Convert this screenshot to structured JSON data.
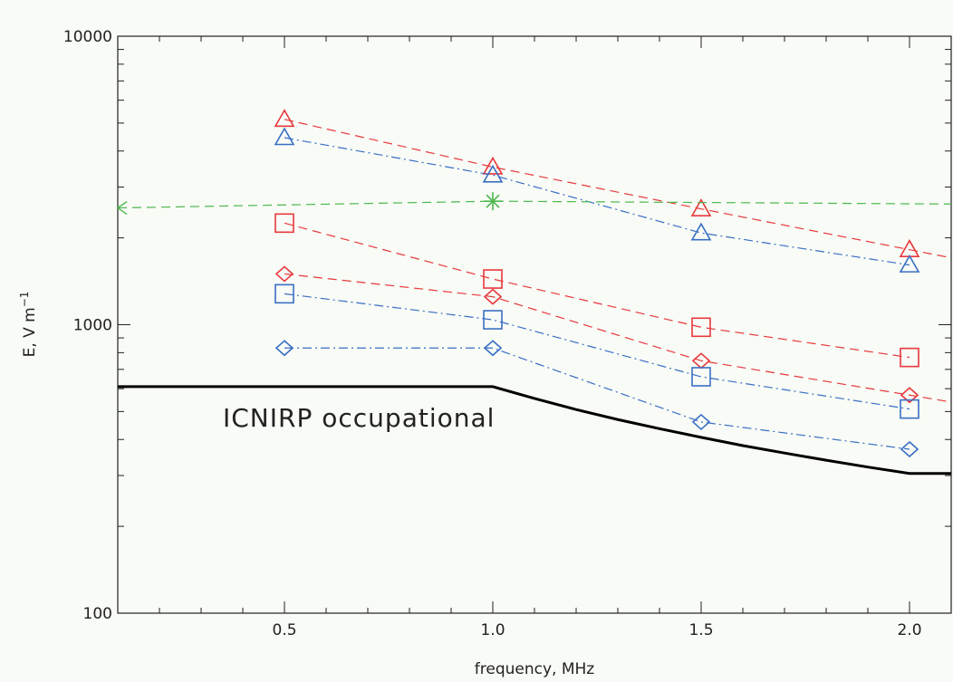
{
  "chart_data": {
    "type": "line",
    "title": "",
    "xlabel": "frequency, MHz",
    "ylabel_main": "E, V m",
    "ylabel_sup": "−1",
    "xlim": [
      0.1,
      2.1
    ],
    "ylim": [
      100,
      10000
    ],
    "yscale": "log",
    "x_ticks": [
      0.5,
      1.0,
      1.5,
      2.0
    ],
    "x_tick_labels": [
      "0.5",
      "1.0",
      "1.5",
      "2.0"
    ],
    "y_ticks": [
      100,
      1000,
      10000
    ],
    "y_tick_labels": [
      "100",
      "1000",
      "10000"
    ],
    "grid": false,
    "series": [
      {
        "color": "#e8383d",
        "dash": "dashed",
        "marker": "triangle",
        "x": [
          0.5,
          1.0,
          1.5,
          2.0
        ],
        "y": [
          5150,
          3520,
          2520,
          1820
        ],
        "extend_to_xmax": true
      },
      {
        "color": "#3a6fc4",
        "dash": "dashdot",
        "marker": "triangle",
        "x": [
          0.5,
          1.0,
          1.5,
          2.0
        ],
        "y": [
          4450,
          3300,
          2080,
          1610
        ]
      },
      {
        "color": "#e8383d",
        "dash": "dashed",
        "marker": "square",
        "x": [
          0.5,
          1.0,
          1.5,
          2.0
        ],
        "y": [
          2250,
          1440,
          980,
          770
        ]
      },
      {
        "color": "#e8383d",
        "dash": "dashed",
        "marker": "diamond",
        "x": [
          0.5,
          1.0,
          1.5,
          2.0
        ],
        "y": [
          1500,
          1250,
          750,
          570
        ],
        "extend_to_xmax": true
      },
      {
        "color": "#3a6fc4",
        "dash": "dashdot",
        "marker": "square",
        "x": [
          0.5,
          1.0,
          1.5,
          2.0
        ],
        "y": [
          1280,
          1040,
          660,
          510
        ]
      },
      {
        "color": "#3a6fc4",
        "dash": "dashdot",
        "marker": "diamond",
        "x": [
          0.5,
          1.0,
          1.5,
          2.0
        ],
        "y": [
          830,
          830,
          460,
          370
        ]
      },
      {
        "color": "#4cb84c",
        "dash": "dashed",
        "marker": "asterisk",
        "x": [
          0.1,
          1.0,
          2.1
        ],
        "y": [
          2540,
          2680,
          2620
        ],
        "marker_at": [
          1.0
        ],
        "arrow_at_xmin": true
      },
      {
        "name": "ICNIRP occupational",
        "color": "#000000",
        "dash": "solid",
        "marker": "none",
        "width": 3,
        "x": [
          0.1,
          1.0,
          1.1,
          1.2,
          1.3,
          1.4,
          1.5,
          1.6,
          1.7,
          1.8,
          1.9,
          2.0,
          2.1
        ],
        "y": [
          610,
          610,
          555,
          508,
          469,
          436,
          407,
          381,
          359,
          339,
          321,
          305,
          305
        ]
      }
    ],
    "annotation": "ICNIRP occupational",
    "annotation_position": "below-left of black curve"
  }
}
